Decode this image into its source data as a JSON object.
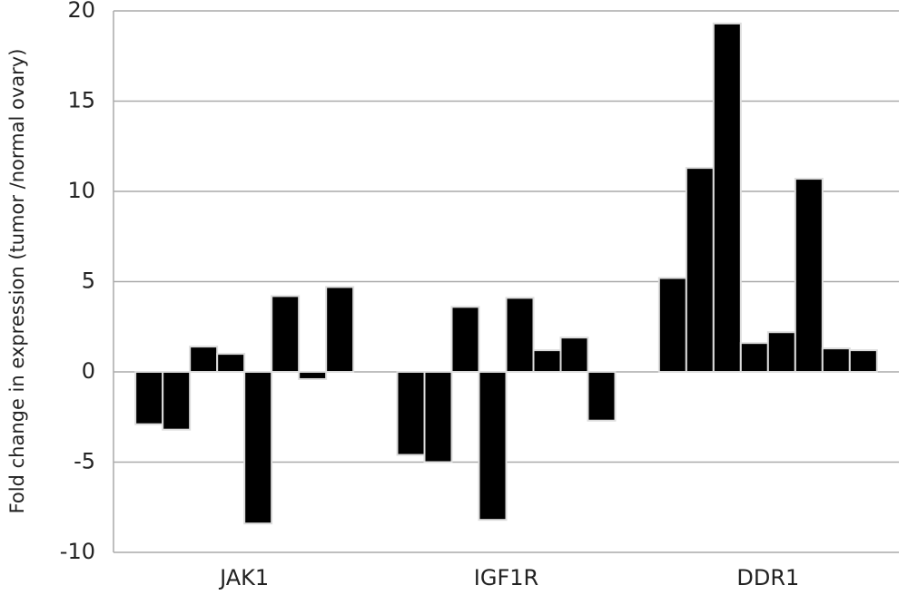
{
  "chart_data": {
    "type": "bar",
    "y_label": "Fold change in expression (tumor /normal ovary)",
    "categories": [
      "JAK1",
      "IGF1R",
      "DDR1"
    ],
    "values": [
      [
        -2.9,
        -3.2,
        1.4,
        1.0,
        -8.4,
        4.2,
        -0.4,
        4.7
      ],
      [
        -4.6,
        -5.0,
        3.6,
        -8.2,
        4.1,
        1.2,
        1.9,
        -2.7
      ],
      [
        5.2,
        11.3,
        19.3,
        1.6,
        2.2,
        10.7,
        1.3,
        1.2
      ]
    ],
    "color": "#000000",
    "ylim": [
      -10,
      20
    ],
    "yticks": [
      -10,
      -5,
      0,
      5,
      10,
      15,
      20
    ],
    "grid": true
  }
}
